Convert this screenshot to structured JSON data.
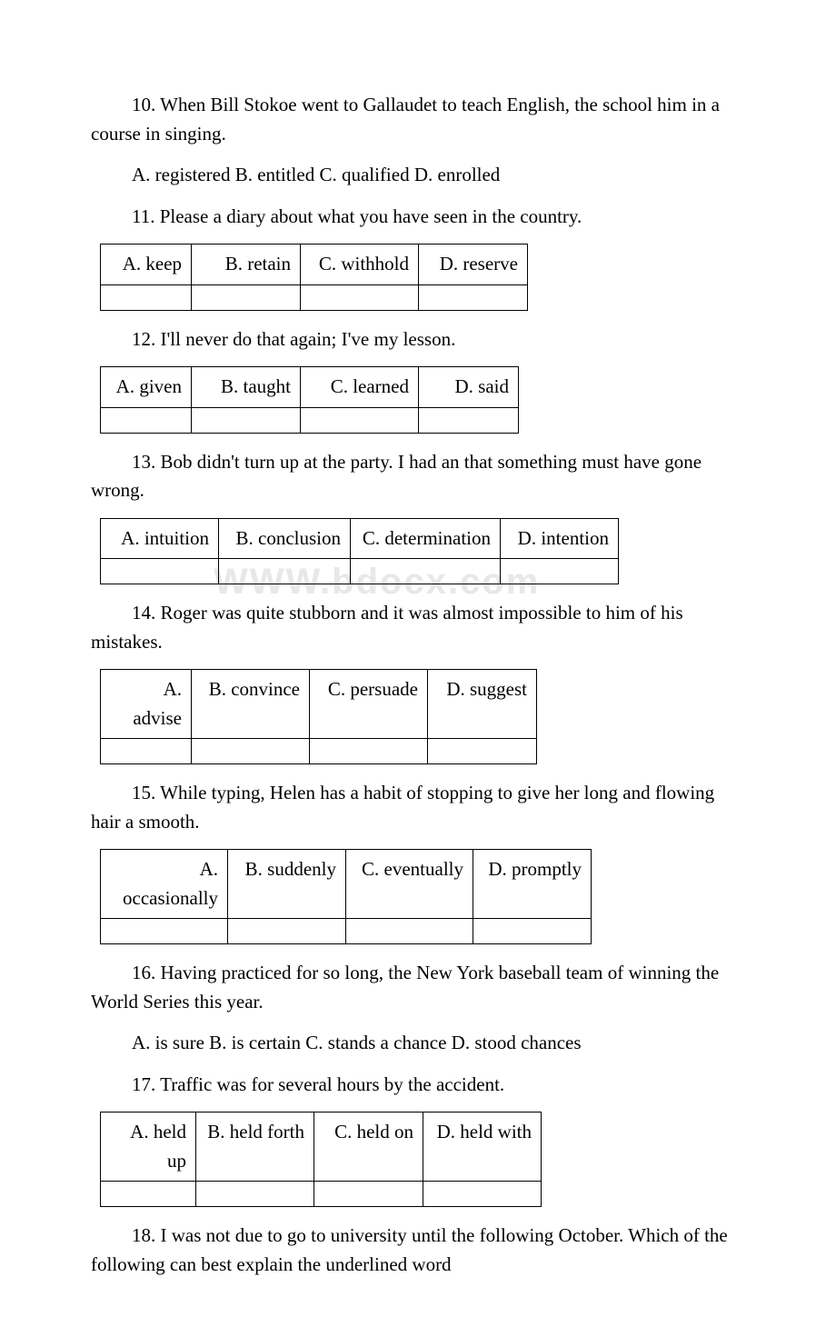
{
  "watermark": "WWW.bdocx.com",
  "questions": [
    {
      "number": "10",
      "text": "10. When Bill Stokoe went to Gallaudet to teach English, the school him in a course in singing.",
      "options_inline": "A. registered B. entitled  C. qualified  D. enrolled",
      "has_table": false
    },
    {
      "number": "11",
      "text": "11. Please   a diary about what you have seen in the country.",
      "has_table": true,
      "table_widths": [
        100,
        120,
        130,
        120
      ],
      "options": [
        "A. keep",
        "B. retain",
        "C. withhold",
        "D. reserve"
      ]
    },
    {
      "number": "12",
      "text": "12. I'll never do that again; I've   my lesson.",
      "has_table": true,
      "table_widths": [
        100,
        120,
        130,
        110
      ],
      "options": [
        "A. given",
        "B. taught",
        "C. learned",
        "D. said"
      ]
    },
    {
      "number": "13",
      "text": "13. Bob didn't turn up at the party. I had an   that something must have gone wrong.",
      "has_table": true,
      "table_widths": [
        130,
        145,
        165,
        130
      ],
      "options": [
        "A. intuition",
        "B. conclusion",
        "C. determination",
        "D. intention"
      ]
    },
    {
      "number": "14",
      "text": "14. Roger was quite stubborn and it was almost impossible to   him of his mistakes.",
      "has_table": true,
      "table_widths": [
        100,
        130,
        130,
        120
      ],
      "options": [
        "A. advise",
        "B. convince",
        "C. persuade",
        "D. suggest"
      ]
    },
    {
      "number": "15",
      "text": "15. While typing, Helen has a habit of stopping   to give her long and flowing hair a smooth.",
      "has_table": true,
      "table_widths": [
        140,
        130,
        140,
        130
      ],
      "options": [
        "A. occasionally",
        "B. suddenly",
        "C. eventually",
        "D. promptly"
      ]
    },
    {
      "number": "16",
      "text": "16. Having practiced for so long, the New York baseball team   of winning the World Series this year.",
      "options_inline": " A. is sure  B. is certain   C. stands a chance  D. stood chances",
      "has_table": false
    },
    {
      "number": "17",
      "text": "17. Traffic was   for several hours by the accident.",
      "has_table": true,
      "table_widths": [
        105,
        130,
        120,
        130
      ],
      "options": [
        "A. held up",
        "B. held forth",
        "C. held on",
        "D. held with"
      ]
    },
    {
      "number": "18",
      "text": "18. I was not due to go to university until the following October. Which of the following can best explain the underlined word",
      "has_table": false
    }
  ]
}
